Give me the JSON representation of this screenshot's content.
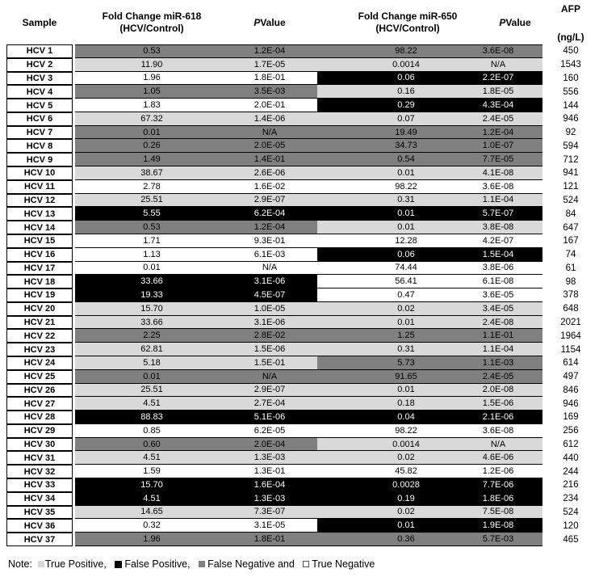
{
  "columns": {
    "sample": "Sample",
    "fc618": [
      "Fold Change miR-618",
      "(HCV/Control)"
    ],
    "p618": {
      "italic": "P",
      "rest": " Value"
    },
    "fc650": [
      "Fold Change miR-650",
      "(HCV/Control)"
    ],
    "p650": {
      "italic": "P",
      "rest": " Value"
    },
    "afp": [
      "AFP",
      "(ng/L)"
    ]
  },
  "colors": {
    "TP": "#D9D9D9",
    "FP": "#000000",
    "FN": "#808080",
    "TN": "#FFFFFF",
    "text_on_dark": "#FFFFFF"
  },
  "rows": [
    {
      "sample": "HCV 1",
      "fc618": "0.53",
      "p618": "1.2E-04",
      "c618": "FN",
      "fc650": "98.22",
      "p650": "3.6E-08",
      "c650": "FN",
      "afp": "450"
    },
    {
      "sample": "HCV 2",
      "fc618": "11.90",
      "p618": "1.7E-05",
      "c618": "TP",
      "fc650": "0.0014",
      "p650": "N/A",
      "c650": "TP",
      "afp": "1543"
    },
    {
      "sample": "HCV 3",
      "fc618": "1.96",
      "p618": "1.8E-01",
      "c618": "TN",
      "fc650": "0.06",
      "p650": "2.2E-07",
      "c650": "FP",
      "afp": "160"
    },
    {
      "sample": "HCV 4",
      "fc618": "1.05",
      "p618": "3.5E-03",
      "c618": "FN",
      "fc650": "0.16",
      "p650": "1.8E-05",
      "c650": "TP",
      "afp": "556"
    },
    {
      "sample": "HCV 5",
      "fc618": "1.83",
      "p618": "2.0E-01",
      "c618": "TN",
      "fc650": "0.29",
      "p650": "4.3E-04",
      "c650": "FP",
      "afp": "144"
    },
    {
      "sample": "HCV 6",
      "fc618": "67.32",
      "p618": "1.4E-06",
      "c618": "TP",
      "fc650": "0.07",
      "p650": "2.4E-05",
      "c650": "TP",
      "afp": "946"
    },
    {
      "sample": "HCV 7",
      "fc618": "0.01",
      "p618": "N/A",
      "c618": "FN",
      "fc650": "19.49",
      "p650": "1.2E-04",
      "c650": "FN",
      "afp": "92"
    },
    {
      "sample": "HCV 8",
      "fc618": "0.26",
      "p618": "2.0E-05",
      "c618": "FN",
      "fc650": "34.73",
      "p650": "1.0E-07",
      "c650": "FN",
      "afp": "594"
    },
    {
      "sample": "HCV 9",
      "fc618": "1.49",
      "p618": "1.4E-01",
      "c618": "FN",
      "fc650": "0.54",
      "p650": "7.7E-05",
      "c650": "FN",
      "afp": "712"
    },
    {
      "sample": "HCV 10",
      "fc618": "38.67",
      "p618": "2.6E-06",
      "c618": "TP",
      "fc650": "0.01",
      "p650": "4.1E-08",
      "c650": "TP",
      "afp": "941"
    },
    {
      "sample": "HCV 11",
      "fc618": "2.78",
      "p618": "1.6E-02",
      "c618": "TN",
      "fc650": "98.22",
      "p650": "3.6E-08",
      "c650": "TN",
      "afp": "121"
    },
    {
      "sample": "HCV 12",
      "fc618": "25.51",
      "p618": "2.9E-07",
      "c618": "TP",
      "fc650": "0.31",
      "p650": "1.1E-04",
      "c650": "TP",
      "afp": "524"
    },
    {
      "sample": "HCV 13",
      "fc618": "5.55",
      "p618": "6.2E-04",
      "c618": "FP",
      "fc650": "0.01",
      "p650": "5.7E-07",
      "c650": "FP",
      "afp": "84"
    },
    {
      "sample": "HCV 14",
      "fc618": "0.53",
      "p618": "1.2E-04",
      "c618": "FN",
      "fc650": "0.01",
      "p650": "3.8E-08",
      "c650": "TP",
      "afp": "647"
    },
    {
      "sample": "HCV 15",
      "fc618": "1.71",
      "p618": "9.3E-01",
      "c618": "TN",
      "fc650": "12.28",
      "p650": "4.2E-07",
      "c650": "TN",
      "afp": "167"
    },
    {
      "sample": "HCV 16",
      "fc618": "1.13",
      "p618": "6.1E-03",
      "c618": "TN",
      "fc650": "0.06",
      "p650": "1.5E-04",
      "c650": "FP",
      "afp": "74"
    },
    {
      "sample": "HCV 17",
      "fc618": "0.01",
      "p618": "N/A",
      "c618": "TN",
      "fc650": "74.44",
      "p650": "3.8E-06",
      "c650": "TN",
      "afp": "61"
    },
    {
      "sample": "HCV 18",
      "fc618": "33.66",
      "p618": "3.1E-06",
      "c618": "FP",
      "fc650": "56.41",
      "p650": "6.1E-08",
      "c650": "TN",
      "afp": "98"
    },
    {
      "sample": "HCV 19",
      "fc618": "19.33",
      "p618": "4.5E-07",
      "c618": "FP",
      "fc650": "0.47",
      "p650": "3.6E-05",
      "c650": "TN",
      "afp": "378"
    },
    {
      "sample": "HCV 20",
      "fc618": "15.70",
      "p618": "1.0E-05",
      "c618": "TP",
      "fc650": "0.02",
      "p650": "3.4E-05",
      "c650": "TP",
      "afp": "648"
    },
    {
      "sample": "HCV 21",
      "fc618": "33.66",
      "p618": "3.1E-06",
      "c618": "TP",
      "fc650": "0.01",
      "p650": "2.4E-08",
      "c650": "TP",
      "afp": "2021"
    },
    {
      "sample": "HCV 22",
      "fc618": "2.25",
      "p618": "2.8E-02",
      "c618": "FN",
      "fc650": "1.25",
      "p650": "1.1E-01",
      "c650": "FN",
      "afp": "1964"
    },
    {
      "sample": "HCV 23",
      "fc618": "62.81",
      "p618": "1.5E-06",
      "c618": "TP",
      "fc650": "0.31",
      "p650": "1.1E-04",
      "c650": "TP",
      "afp": "1154"
    },
    {
      "sample": "HCV 24",
      "fc618": "5.18",
      "p618": "1.5E-01",
      "c618": "TP",
      "fc650": "5.73",
      "p650": "1.1E-03",
      "c650": "FN",
      "afp": "614"
    },
    {
      "sample": "HCV 25",
      "fc618": "0.01",
      "p618": "N/A",
      "c618": "FN",
      "fc650": "91.65",
      "p650": "2.4E-05",
      "c650": "FN",
      "afp": "497"
    },
    {
      "sample": "HCV 26",
      "fc618": "25.51",
      "p618": "2.9E-07",
      "c618": "TP",
      "fc650": "0.01",
      "p650": "2.0E-08",
      "c650": "TP",
      "afp": "846"
    },
    {
      "sample": "HCV 27",
      "fc618": "4.51",
      "p618": "2.7E-04",
      "c618": "TP",
      "fc650": "0.18",
      "p650": "1.5E-06",
      "c650": "TP",
      "afp": "946"
    },
    {
      "sample": "HCV 28",
      "fc618": "88.83",
      "p618": "5.1E-06",
      "c618": "FP",
      "fc650": "0.04",
      "p650": "2.1E-06",
      "c650": "FP",
      "afp": "169"
    },
    {
      "sample": "HCV 29",
      "fc618": "0.85",
      "p618": "6.2E-05",
      "c618": "TN",
      "fc650": "98.22",
      "p650": "3.6E-08",
      "c650": "TN",
      "afp": "256"
    },
    {
      "sample": "HCV 30",
      "fc618": "0.60",
      "p618": "2.0E-04",
      "c618": "FN",
      "fc650": "0.0014",
      "p650": "N/A",
      "c650": "TP",
      "afp": "612"
    },
    {
      "sample": "HCV 31",
      "fc618": "4.51",
      "p618": "1.3E-03",
      "c618": "TP",
      "fc650": "0.02",
      "p650": "4.6E-06",
      "c650": "TP",
      "afp": "440"
    },
    {
      "sample": "HCV 32",
      "fc618": "1.59",
      "p618": "1.3E-01",
      "c618": "TN",
      "fc650": "45.82",
      "p650": "1.2E-06",
      "c650": "TN",
      "afp": "244"
    },
    {
      "sample": "HCV 33",
      "fc618": "15.70",
      "p618": "1.6E-04",
      "c618": "FP",
      "fc650": "0.0028",
      "p650": "7.7E-06",
      "c650": "FP",
      "afp": "216"
    },
    {
      "sample": "HCV 34",
      "fc618": "4.51",
      "p618": "1.3E-03",
      "c618": "FP",
      "fc650": "0.19",
      "p650": "1.8E-06",
      "c650": "FP",
      "afp": "234"
    },
    {
      "sample": "HCV 35",
      "fc618": "14.65",
      "p618": "7.3E-07",
      "c618": "TP",
      "fc650": "0.02",
      "p650": "7.5E-08",
      "c650": "TP",
      "afp": "524"
    },
    {
      "sample": "HCV 36",
      "fc618": "0.32",
      "p618": "3.1E-05",
      "c618": "TN",
      "fc650": "0.01",
      "p650": "1.9E-08",
      "c650": "FP",
      "afp": "120"
    },
    {
      "sample": "HCV 37",
      "fc618": "1.96",
      "p618": "1.8E-01",
      "c618": "FN",
      "fc650": "0.36",
      "p650": "5.7E-03",
      "c650": "FN",
      "afp": "465"
    }
  ],
  "note": {
    "prefix": "Note:",
    "items": [
      {
        "swatch": "TP",
        "label": "True Positive,"
      },
      {
        "swatch": "FP",
        "label": "False Positive,"
      },
      {
        "swatch": "FN",
        "label": "False Negative and"
      },
      {
        "swatch": "TN",
        "label": "True Negative"
      }
    ]
  }
}
